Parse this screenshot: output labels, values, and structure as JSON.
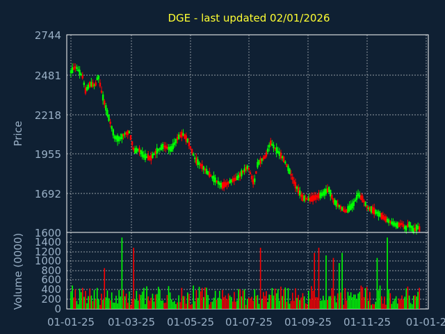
{
  "chart_data": {
    "type": "candlestick",
    "title": "DGE - last updated 02/01/2026",
    "price_panel": {
      "ylabel": "Price",
      "y_ticks": [
        "2744",
        "2481",
        "2218",
        "1955",
        "1692",
        "1600"
      ],
      "ylim": [
        1600,
        2744
      ]
    },
    "volume_panel": {
      "ylabel": "Volume (0000)",
      "y_ticks": [
        "1400",
        "1200",
        "1000",
        "800",
        "600",
        "400",
        "200",
        "0"
      ],
      "ylim": [
        0,
        1500
      ]
    },
    "x_ticks": [
      "01-01-25",
      "01-03-25",
      "01-05-25",
      "01-07-25",
      "01-09-25",
      "01-11-25",
      "01-01-2"
    ],
    "x_range_days": [
      0,
      365
    ],
    "price_path": [
      [
        0,
        2530
      ],
      [
        5,
        2560
      ],
      [
        12,
        2500
      ],
      [
        15,
        2420
      ],
      [
        20,
        2460
      ],
      [
        25,
        2450
      ],
      [
        28,
        2510
      ],
      [
        32,
        2400
      ],
      [
        38,
        2280
      ],
      [
        45,
        2150
      ],
      [
        50,
        2140
      ],
      [
        55,
        2170
      ],
      [
        60,
        2180
      ],
      [
        65,
        2070
      ],
      [
        70,
        2080
      ],
      [
        75,
        2040
      ],
      [
        82,
        2030
      ],
      [
        88,
        2070
      ],
      [
        95,
        2100
      ],
      [
        103,
        2080
      ],
      [
        110,
        2150
      ],
      [
        115,
        2170
      ],
      [
        120,
        2130
      ],
      [
        128,
        2020
      ],
      [
        135,
        1980
      ],
      [
        145,
        1920
      ],
      [
        155,
        1870
      ],
      [
        160,
        1880
      ],
      [
        165,
        1900
      ],
      [
        170,
        1910
      ],
      [
        178,
        1960
      ],
      [
        182,
        1980
      ],
      [
        188,
        1880
      ],
      [
        192,
        2000
      ],
      [
        200,
        2040
      ],
      [
        205,
        2120
      ],
      [
        212,
        2070
      ],
      [
        218,
        2030
      ],
      [
        225,
        1950
      ],
      [
        230,
        1880
      ],
      [
        238,
        1800
      ],
      [
        245,
        1790
      ],
      [
        250,
        1800
      ],
      [
        258,
        1820
      ],
      [
        265,
        1850
      ],
      [
        270,
        1780
      ],
      [
        278,
        1740
      ],
      [
        282,
        1720
      ],
      [
        290,
        1760
      ],
      [
        295,
        1820
      ],
      [
        300,
        1790
      ],
      [
        305,
        1740
      ],
      [
        310,
        1730
      ],
      [
        318,
        1700
      ],
      [
        325,
        1670
      ],
      [
        328,
        1660
      ],
      [
        335,
        1640
      ],
      [
        340,
        1650
      ],
      [
        344,
        1620
      ],
      [
        347,
        1650
      ],
      [
        352,
        1610
      ],
      [
        356,
        1630
      ],
      [
        358,
        1620
      ]
    ],
    "n_candles": 240,
    "volume_peaks": [
      [
        52,
        1400
      ],
      [
        35,
        800
      ],
      [
        65,
        1200
      ],
      [
        195,
        1200
      ],
      [
        250,
        1100
      ],
      [
        255,
        1200
      ],
      [
        262,
        1050
      ],
      [
        270,
        1000
      ],
      [
        275,
        900
      ],
      [
        278,
        1100
      ],
      [
        325,
        1400
      ],
      [
        315,
        1000
      ]
    ],
    "colors": {
      "up": "#00ff00",
      "down": "#ff0000",
      "background": "#0f2033",
      "title": "#ffff33",
      "tick_text": "#9ab0c6",
      "grid": "#ffffff"
    }
  }
}
